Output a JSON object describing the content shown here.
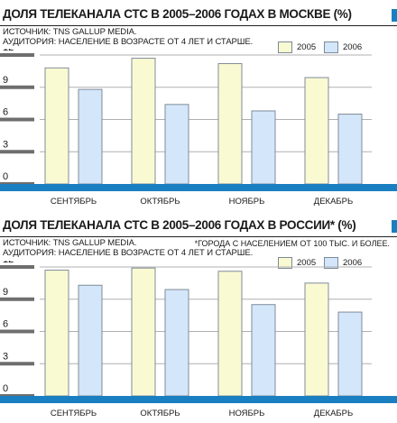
{
  "colors": {
    "series_2005": "#fafad2",
    "series_2006": "#d4e6f9",
    "bar_stroke": "#7f8c99",
    "grid": "#b0b0b0",
    "accent": "#1a7fc0",
    "tick_bar": "#6e6e6e"
  },
  "chart_data": [
    {
      "type": "bar",
      "title": "ДОЛЯ ТЕЛЕКАНАЛА СТС В 2005–2006 ГОДАХ В МОСКВЕ (%)",
      "source": "ИСТОЧНИК: TNS GALLUP MEDIA.",
      "audience": "АУДИТОРИЯ: НАСЕЛЕНИЕ В ВОЗРАСТЕ ОТ 4 ЛЕТ И СТАРШЕ.",
      "note": "",
      "categories": [
        "СЕНТЯБРЬ",
        "ОКТЯБРЬ",
        "НОЯБРЬ",
        "ДЕКАБРЬ"
      ],
      "series": [
        {
          "name": "2005",
          "values": [
            10.8,
            11.7,
            11.2,
            9.9
          ]
        },
        {
          "name": "2006",
          "values": [
            8.8,
            7.4,
            6.8,
            6.5
          ]
        }
      ],
      "ylim": [
        0,
        12
      ],
      "yticks": [
        "0",
        "3",
        "6",
        "9",
        "12"
      ],
      "grid": true,
      "legend": "top-right"
    },
    {
      "type": "bar",
      "title": "ДОЛЯ ТЕЛЕКАНАЛА СТС В 2005–2006 ГОДАХ В РОССИИ* (%)",
      "source": "ИСТОЧНИК: TNS GALLUP MEDIA.",
      "audience": "АУДИТОРИЯ: НАСЕЛЕНИЕ В ВОЗРАСТЕ ОТ 4 ЛЕТ И СТАРШЕ.",
      "note": "*ГОРОДА С НАСЕЛЕНИЕМ ОТ 100 ТЫС. И БОЛЕЕ.",
      "categories": [
        "СЕНТЯБРЬ",
        "ОКТЯБРЬ",
        "НОЯБРЬ",
        "ДЕКАБРЬ"
      ],
      "series": [
        {
          "name": "2005",
          "values": [
            11.7,
            11.9,
            11.6,
            10.5
          ]
        },
        {
          "name": "2006",
          "values": [
            10.3,
            9.9,
            8.5,
            7.8
          ]
        }
      ],
      "ylim": [
        0,
        12
      ],
      "yticks": [
        "0",
        "3",
        "6",
        "9",
        "12"
      ],
      "grid": true,
      "legend": "top-right"
    }
  ]
}
